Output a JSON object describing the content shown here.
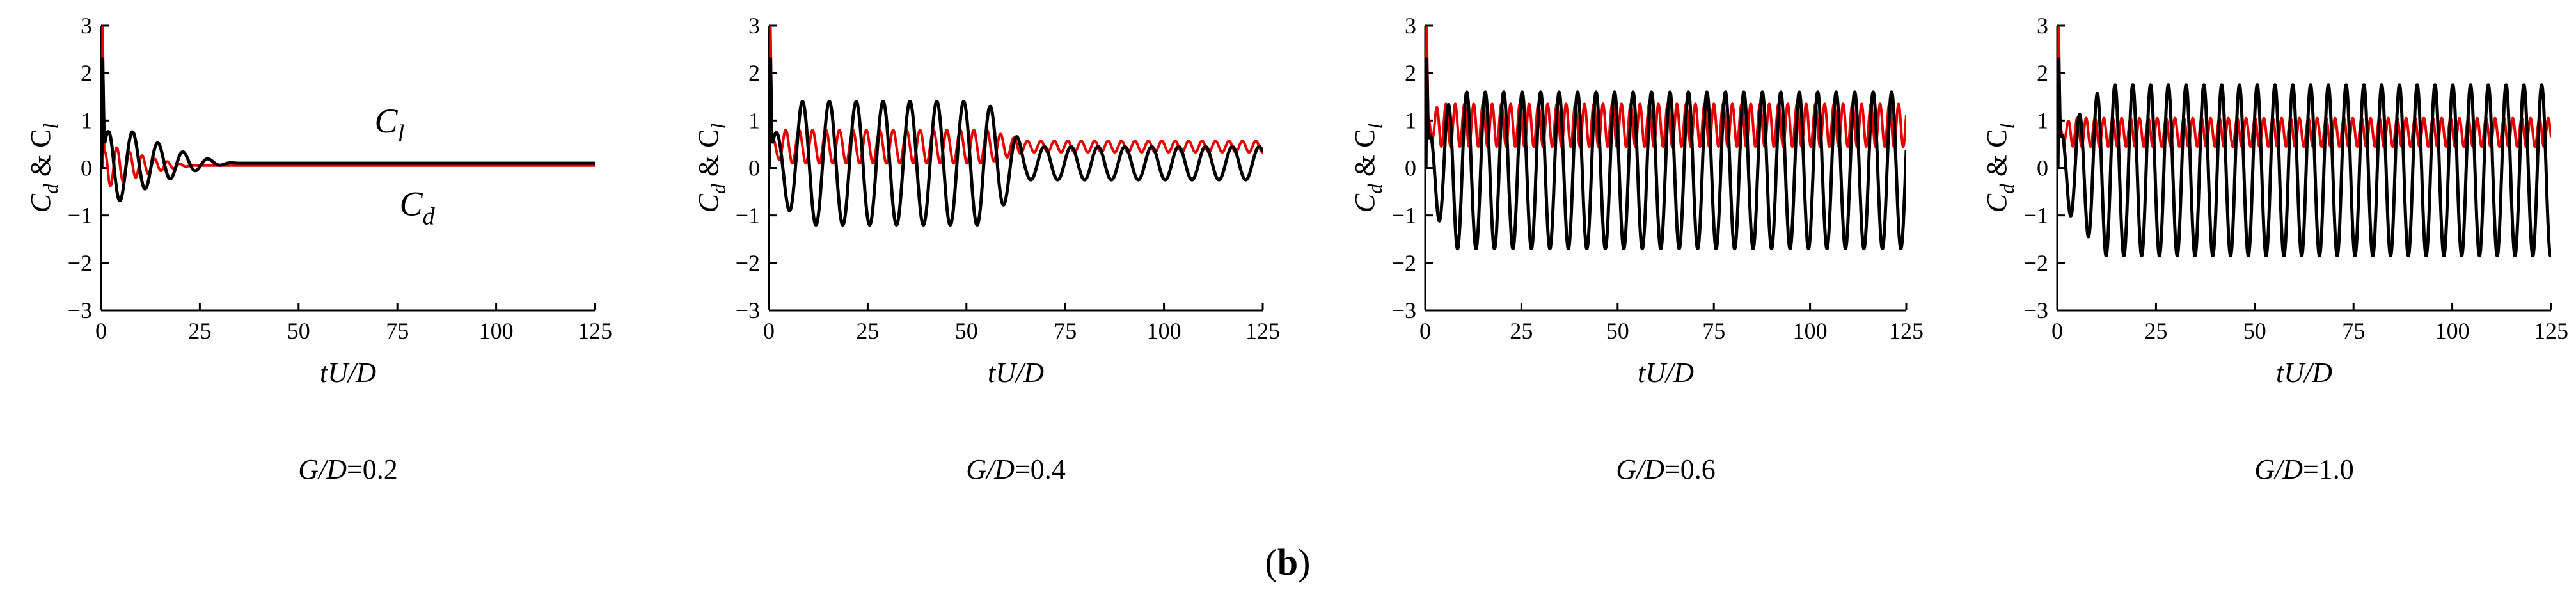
{
  "figure_label": "(b)",
  "figure_label_inner": "b",
  "colors": {
    "series_cl": "#000000",
    "series_cd": "#e60000",
    "axis": "#000000"
  },
  "chart_data": [
    {
      "type": "line",
      "caption_var": "G/D",
      "caption_value": "=0.2",
      "xlabel": "tU/D",
      "ylabel_parts": [
        "C",
        "d",
        " & C",
        "l"
      ],
      "xlim": [
        0,
        125
      ],
      "ylim": [
        -3,
        3
      ],
      "xticks": [
        0,
        25,
        50,
        75,
        100,
        125
      ],
      "yticks": [
        -3,
        -2,
        -1,
        0,
        1,
        2,
        3
      ],
      "annotations": [
        {
          "text": "C",
          "sub": "l",
          "x": 73,
          "y": 0.75
        },
        {
          "text": "C",
          "sub": "d",
          "x": 80,
          "y": -1.0
        }
      ],
      "series": [
        {
          "key": "cl",
          "signal": {
            "mean": 0.1,
            "amp_start": 1.0,
            "amp_end": 0.0,
            "period": 6.4,
            "growth_time": 3,
            "steady_start": 35,
            "x_start": 1
          }
        },
        {
          "key": "cd",
          "signal": {
            "mean": 0.05,
            "amp_start": 0.5,
            "amp_end": 0.0,
            "period": 3.2,
            "growth_time": 2,
            "steady_start": 25,
            "x_start": 1
          }
        }
      ]
    },
    {
      "type": "line",
      "caption_var": "G/D",
      "caption_value": "=0.4",
      "xlabel": "tU/D",
      "ylabel_parts": [
        "C",
        "d",
        " & C",
        "l"
      ],
      "xlim": [
        0,
        125
      ],
      "ylim": [
        -3,
        3
      ],
      "xticks": [
        0,
        25,
        50,
        75,
        100,
        125
      ],
      "yticks": [
        -3,
        -2,
        -1,
        0,
        1,
        2,
        3
      ],
      "annotations": [],
      "series": [
        {
          "key": "cl",
          "signal": {
            "mean": 0.1,
            "amp_start": 1.3,
            "amp_end": 0.35,
            "period": 6.8,
            "growth_time": 8,
            "decay_start": 55,
            "decay_end": 65,
            "x_start": 1
          }
        },
        {
          "key": "cd",
          "signal": {
            "mean": 0.45,
            "amp_start": 0.35,
            "amp_end": 0.12,
            "period": 3.4,
            "growth_time": 4,
            "decay_start": 55,
            "decay_end": 65,
            "x_start": 1
          }
        }
      ]
    },
    {
      "type": "line",
      "caption_var": "G/D",
      "caption_value": "=0.6",
      "xlabel": "tU/D",
      "ylabel_parts": [
        "C",
        "d",
        " & C",
        "l"
      ],
      "xlim": [
        0,
        125
      ],
      "ylim": [
        -3,
        3
      ],
      "xticks": [
        0,
        25,
        50,
        75,
        100,
        125
      ],
      "yticks": [
        -3,
        -2,
        -1,
        0,
        1,
        2,
        3
      ],
      "annotations": [],
      "series": [
        {
          "key": "cl",
          "signal": {
            "mean": -0.05,
            "amp_start": 1.65,
            "amp_end": 1.65,
            "period": 4.8,
            "growth_time": 8,
            "x_start": 1
          }
        },
        {
          "key": "cd",
          "signal": {
            "mean": 0.9,
            "amp_start": 0.45,
            "amp_end": 0.45,
            "period": 2.4,
            "growth_time": 4,
            "x_start": 1
          }
        }
      ]
    },
    {
      "type": "line",
      "caption_var": "G/D",
      "caption_value": "=1.0",
      "xlabel": "tU/D",
      "ylabel_parts": [
        "C",
        "d",
        " & C",
        "l"
      ],
      "xlim": [
        0,
        125
      ],
      "ylim": [
        -3,
        3
      ],
      "xticks": [
        0,
        25,
        50,
        75,
        100,
        125
      ],
      "yticks": [
        -3,
        -2,
        -1,
        0,
        1,
        2,
        3
      ],
      "annotations": [],
      "series": [
        {
          "key": "cl",
          "signal": {
            "mean": -0.05,
            "amp_start": 1.8,
            "amp_end": 1.8,
            "period": 4.5,
            "growth_time": 12,
            "x_start": 1
          }
        },
        {
          "key": "cd",
          "signal": {
            "mean": 0.75,
            "amp_start": 0.3,
            "amp_end": 0.3,
            "period": 2.25,
            "growth_time": 4,
            "x_start": 1
          }
        }
      ]
    }
  ]
}
